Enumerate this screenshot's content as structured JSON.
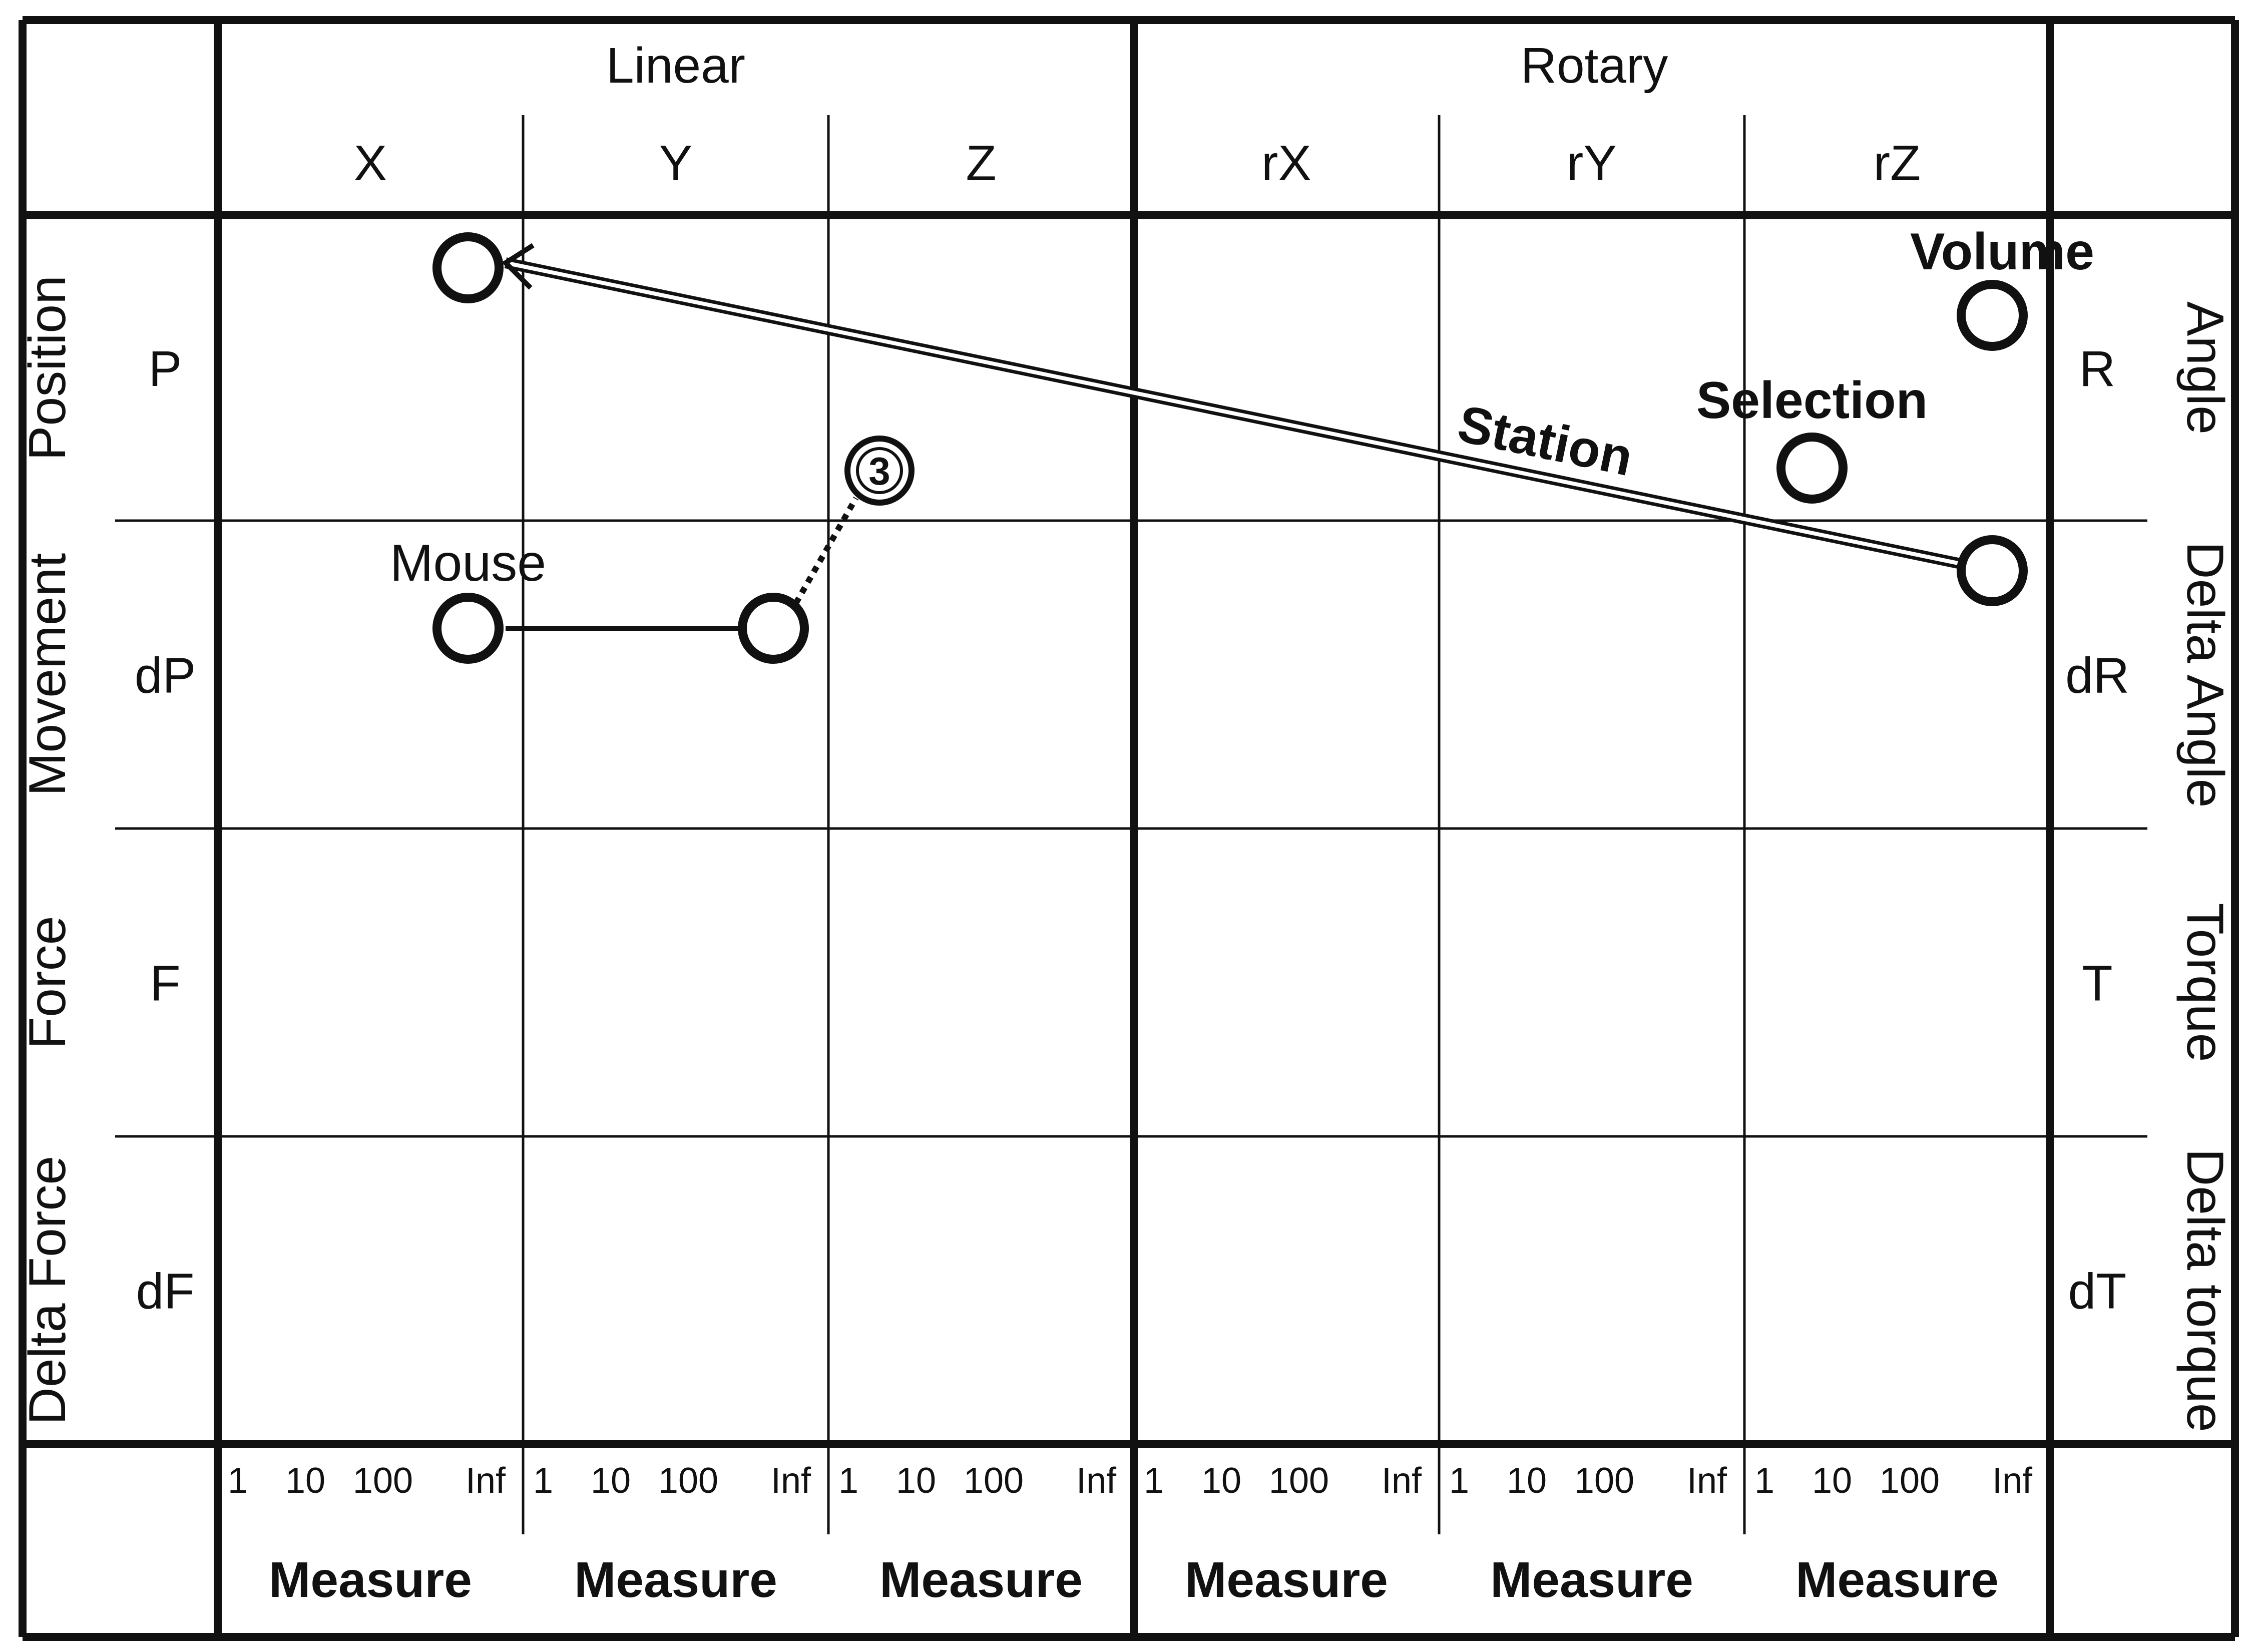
{
  "headers": {
    "linear": "Linear",
    "rotary": "Rotary"
  },
  "columns": [
    "X",
    "Y",
    "Z",
    "rX",
    "rY",
    "rZ"
  ],
  "rows": [
    {
      "left_name": "Position",
      "left_sym": "P",
      "right_sym": "R",
      "right_name": "Angle"
    },
    {
      "left_name": "Movement",
      "left_sym": "dP",
      "right_sym": "dR",
      "right_name": "Delta Angle"
    },
    {
      "left_name": "Force",
      "left_sym": "F",
      "right_sym": "T",
      "right_name": "Torque"
    },
    {
      "left_name": "Delta Force",
      "left_sym": "dF",
      "right_sym": "dT",
      "right_name": "Delta torque"
    }
  ],
  "scale_ticks": [
    "1",
    "10",
    "100",
    "Inf"
  ],
  "measure_label": "Measure",
  "devices": {
    "volume": "Volume",
    "selection": "Selection",
    "station": "Station",
    "mouse": "Mouse",
    "marker": "3"
  },
  "colors": {
    "ink": "#111111",
    "background": "#ffffff"
  }
}
